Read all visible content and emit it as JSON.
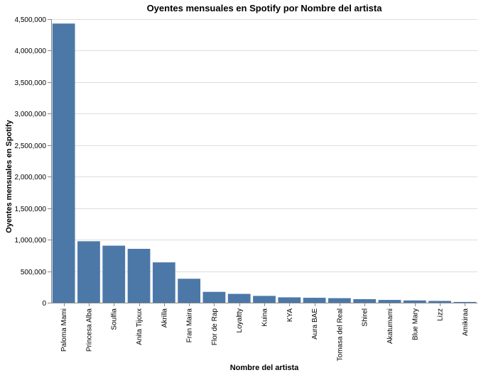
{
  "chart_data": {
    "type": "bar",
    "title": "Oyentes mensuales en Spotify por Nombre del artista",
    "xlabel": "Nombre del artista",
    "ylabel": "Oyentes mensuales en Spotify",
    "categories": [
      "Paloma Mami",
      "Princesa Alba",
      "Soulfia",
      "Anita Tijoux",
      "Akrilla",
      "Fran Maira",
      "Flor de Rap",
      "Loyaltty",
      "Kuina",
      "KYA",
      "Aura BAE",
      "Tomasa del Real",
      "Shirel",
      "Akatumami",
      "Blue Mary",
      "Lizz",
      "Amikiraa"
    ],
    "values": [
      4430000,
      975000,
      905000,
      855000,
      640000,
      380000,
      172000,
      140000,
      108000,
      85000,
      78000,
      72000,
      56000,
      44000,
      36000,
      28000,
      12000
    ],
    "ylim": [
      0,
      4500000
    ],
    "yticks": [
      "0",
      "500,000",
      "1,000,000",
      "1,500,000",
      "2,000,000",
      "2,500,000",
      "3,000,000",
      "3,500,000",
      "4,000,000",
      "4,500,000"
    ],
    "ytick_values": [
      0,
      500000,
      1000000,
      1500000,
      2000000,
      2500000,
      3000000,
      3500000,
      4000000,
      4500000
    ],
    "grid": true,
    "bar_color": "#4c78a8"
  }
}
